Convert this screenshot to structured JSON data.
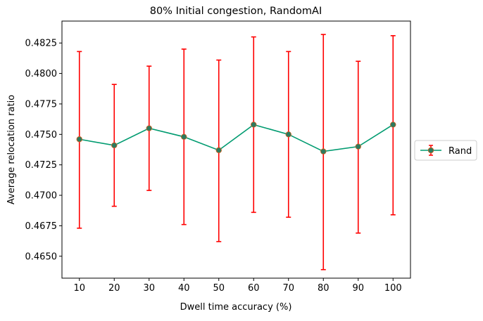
{
  "chart_data": {
    "type": "line",
    "title": "80% Initial congestion, RandomAI",
    "xlabel": "Dwell time accuracy (%)",
    "ylabel": "Average relocation ratio",
    "x": [
      10,
      20,
      30,
      40,
      50,
      60,
      70,
      80,
      90,
      100
    ],
    "xticks": [
      "10",
      "20",
      "30",
      "40",
      "50",
      "60",
      "70",
      "80",
      "90",
      "100"
    ],
    "xlim": [
      5,
      105
    ],
    "ylim": [
      0.4632,
      0.4843
    ],
    "yticks": [
      "0.4650",
      "0.4675",
      "0.4700",
      "0.4725",
      "0.4750",
      "0.4775",
      "0.4800",
      "0.4825"
    ],
    "grid": false,
    "legend_position": "center-right outside",
    "series": [
      {
        "name": "Rand",
        "line_color": "#009b70",
        "marker_color": "#2e7a5e",
        "errorbar_color": "#ff0000",
        "values": [
          0.4746,
          0.4741,
          0.4755,
          0.4748,
          0.4737,
          0.4758,
          0.475,
          0.4736,
          0.474,
          0.4758
        ],
        "err_lower": [
          0.4673,
          0.4691,
          0.4704,
          0.4676,
          0.4662,
          0.4686,
          0.4682,
          0.4639,
          0.4669,
          0.4684
        ],
        "err_upper": [
          0.4818,
          0.4791,
          0.4806,
          0.482,
          0.4811,
          0.483,
          0.4818,
          0.4832,
          0.481,
          0.4831
        ]
      }
    ]
  }
}
